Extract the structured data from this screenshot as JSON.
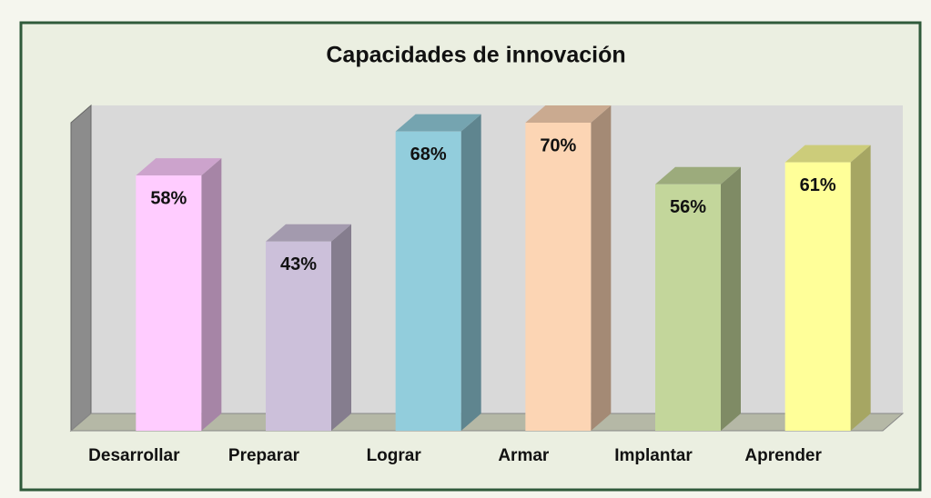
{
  "chart_data": {
    "type": "bar3d",
    "title": "Capacidades de innovación",
    "categories": [
      "Desarrollar",
      "Preparar",
      "Lograr",
      "Armar",
      "Implantar",
      "Aprender"
    ],
    "values": [
      58,
      43,
      68,
      70,
      56,
      61
    ],
    "value_labels": [
      "58%",
      "43%",
      "68%",
      "70%",
      "56%",
      "61%"
    ],
    "colors": [
      "#ffccff",
      "#ccc0da",
      "#92cddc",
      "#fcd5b4",
      "#c3d69b",
      "#ffff99"
    ],
    "ylim": [
      0,
      70
    ]
  }
}
